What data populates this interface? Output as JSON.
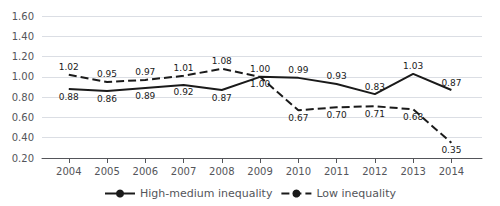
{
  "chart_data": {
    "type": "line",
    "x": [
      2004,
      2005,
      2006,
      2007,
      2008,
      2009,
      2010,
      2011,
      2012,
      2013,
      2014
    ],
    "xlim": [
      2003.3,
      2014.8
    ],
    "xticks": [
      2004,
      2005,
      2006,
      2007,
      2008,
      2009,
      2010,
      2011,
      2012,
      2013,
      2014
    ],
    "ylim": [
      0.2,
      1.6
    ],
    "yticks": [
      {
        "value": 0.2,
        "label": "0.20"
      },
      {
        "value": 0.4,
        "label": "0.40"
      },
      {
        "value": 0.6,
        "label": "0.60"
      },
      {
        "value": 0.8,
        "label": "0.80"
      },
      {
        "value": 1.0,
        "label": "1.00"
      },
      {
        "value": 1.2,
        "label": "1.20"
      },
      {
        "value": 1.4,
        "label": "1.40"
      },
      {
        "value": 1.6,
        "label": "1.60"
      }
    ],
    "grid": true,
    "legend": "bottom",
    "data_labels": true,
    "marker": "none",
    "series": [
      {
        "name": "High-medium inequality",
        "color": "#1a1a1a",
        "line_style": "solid",
        "values": [
          0.88,
          0.86,
          0.89,
          0.92,
          0.87,
          1.0,
          0.99,
          0.93,
          0.83,
          1.03,
          0.87
        ],
        "value_labels": [
          "0.88",
          "0.86",
          "0.89",
          "0.92",
          "0.87",
          "1.00",
          "0.99",
          "0.93",
          "0.83",
          "1.03",
          "0.87"
        ]
      },
      {
        "name": "Low inequality",
        "color": "#1a1a1a",
        "line_style": "dashed",
        "values": [
          1.02,
          0.95,
          0.97,
          1.01,
          1.08,
          1.0,
          0.67,
          0.7,
          0.71,
          0.68,
          0.35
        ],
        "value_labels": [
          "1.02",
          "0.95",
          "0.97",
          "1.01",
          "1.08",
          "1.00",
          "0.67",
          "0.70",
          "0.71",
          "0.68",
          "0.35"
        ]
      }
    ]
  }
}
